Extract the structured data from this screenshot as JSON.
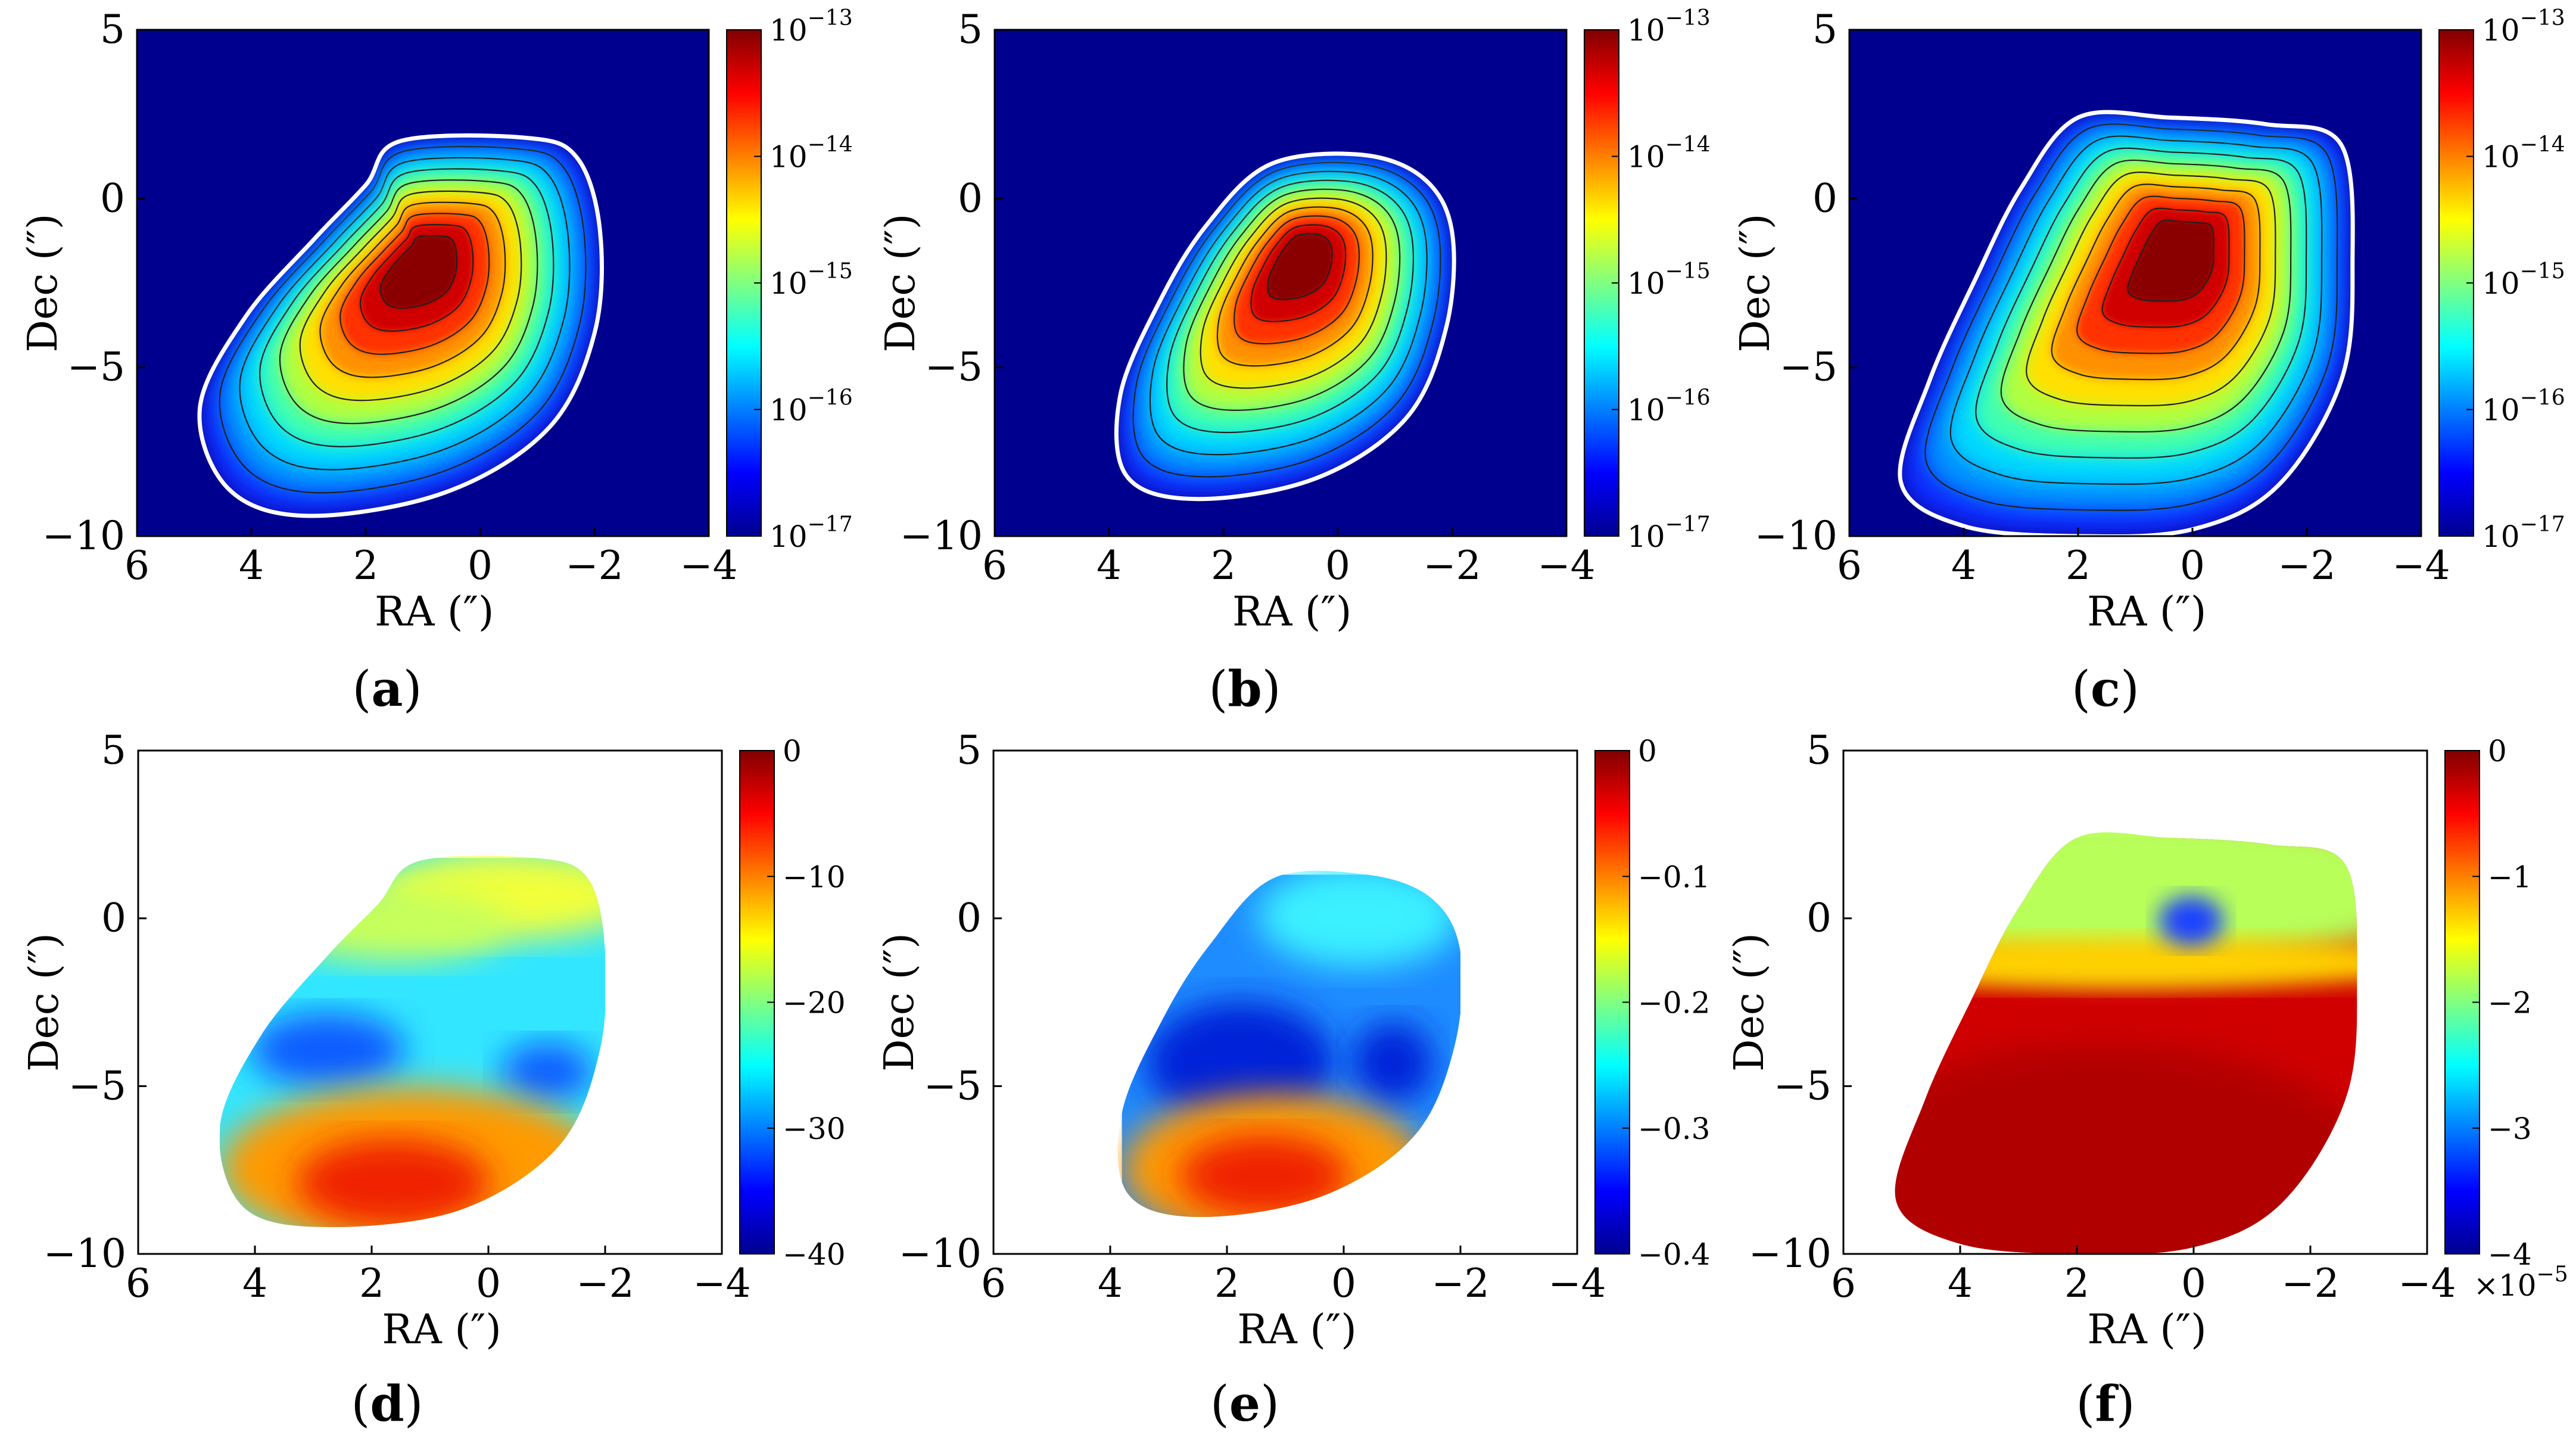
{
  "chart_data": [
    {
      "panel": "(a)",
      "type": "heatmap",
      "variant": "intensity",
      "xlabel": "RA (″)",
      "ylabel": "Dec (″)",
      "xlim": [
        6,
        -4
      ],
      "ylim": [
        -10,
        5
      ],
      "xticks": [
        "6",
        "4",
        "2",
        "0",
        "−2",
        "−4"
      ],
      "yticks": [
        "5",
        "0",
        "−5",
        "−10"
      ],
      "colorbar": {
        "scale": "log",
        "range": [
          1e-17,
          1e-13
        ],
        "ticks": [
          "10",
          "10",
          "10",
          "10",
          "10"
        ],
        "exponents": [
          "−13",
          "−14",
          "−15",
          "−16",
          "−17"
        ]
      },
      "boundary": [
        [
          1.4,
          1.7
        ],
        [
          -0.8,
          1.8
        ],
        [
          -1.7,
          1.2
        ],
        [
          -2.1,
          -1.0
        ],
        [
          -2.0,
          -4.0
        ],
        [
          -1.2,
          -6.8
        ],
        [
          0.6,
          -8.7
        ],
        [
          3.0,
          -9.4
        ],
        [
          4.4,
          -8.6
        ],
        [
          4.9,
          -6.2
        ],
        [
          4.1,
          -3.5
        ],
        [
          2.9,
          -1.2
        ],
        [
          2.0,
          0.4
        ]
      ],
      "peak": [
        1.0,
        -1.8
      ]
    },
    {
      "panel": "(b)",
      "type": "heatmap",
      "variant": "intensity",
      "xlabel": "RA (″)",
      "ylabel": "Dec (″)",
      "xlim": [
        6,
        -4
      ],
      "ylim": [
        -10,
        5
      ],
      "xticks": [
        "6",
        "4",
        "2",
        "0",
        "−2",
        "−4"
      ],
      "yticks": [
        "5",
        "0",
        "−5",
        "−10"
      ],
      "colorbar": {
        "scale": "log",
        "range": [
          1e-17,
          1e-13
        ],
        "ticks": [
          "10",
          "10",
          "10",
          "10",
          "10"
        ],
        "exponents": [
          "−13",
          "−14",
          "−15",
          "−16",
          "−17"
        ]
      },
      "boundary": [
        [
          1.2,
          1.0
        ],
        [
          -0.4,
          1.3
        ],
        [
          -1.5,
          0.6
        ],
        [
          -2.0,
          -1.0
        ],
        [
          -1.9,
          -3.8
        ],
        [
          -1.2,
          -6.5
        ],
        [
          0.4,
          -8.3
        ],
        [
          2.5,
          -8.9
        ],
        [
          3.7,
          -8.2
        ],
        [
          3.8,
          -5.8
        ],
        [
          3.1,
          -3.0
        ],
        [
          2.3,
          -0.8
        ]
      ],
      "peak": [
        0.6,
        -1.6
      ]
    },
    {
      "panel": "(c)",
      "type": "heatmap",
      "variant": "intensity",
      "xlabel": "RA (″)",
      "ylabel": "Dec (″)",
      "xlim": [
        6,
        -4
      ],
      "ylim": [
        -10,
        5
      ],
      "xticks": [
        "6",
        "4",
        "2",
        "0",
        "−2",
        "−4"
      ],
      "yticks": [
        "5",
        "0",
        "−5",
        "−10"
      ],
      "colorbar": {
        "scale": "log",
        "range": [
          1e-17,
          1e-13
        ],
        "ticks": [
          "10",
          "10",
          "10",
          "10",
          "10"
        ],
        "exponents": [
          "−13",
          "−14",
          "−15",
          "−16",
          "−17"
        ]
      },
      "boundary": [
        [
          2.0,
          2.4
        ],
        [
          0.4,
          2.4
        ],
        [
          -1.3,
          2.2
        ],
        [
          -2.6,
          1.6
        ],
        [
          -2.8,
          -2.0
        ],
        [
          -2.6,
          -5.4
        ],
        [
          -1.5,
          -8.5
        ],
        [
          0.0,
          -9.8
        ],
        [
          2.0,
          -10.0
        ],
        [
          4.0,
          -9.7
        ],
        [
          5.1,
          -8.4
        ],
        [
          4.6,
          -5.4
        ],
        [
          3.8,
          -2.4
        ],
        [
          3.0,
          0.3
        ]
      ],
      "peak": [
        0.2,
        -1.4
      ]
    },
    {
      "panel": "(d)",
      "type": "heatmap",
      "variant": "residual",
      "xlabel": "RA (″)",
      "ylabel": "Dec (″)",
      "xlim": [
        6,
        -4
      ],
      "ylim": [
        -10,
        5
      ],
      "xticks": [
        "6",
        "4",
        "2",
        "0",
        "−2",
        "−4"
      ],
      "yticks": [
        "5",
        "0",
        "−5",
        "−10"
      ],
      "colorbar": {
        "scale": "linear",
        "range": [
          -40,
          0
        ],
        "ticks": [
          "0",
          "−10",
          "−20",
          "−30",
          "−40"
        ]
      },
      "boundary": [
        [
          1.2,
          1.7
        ],
        [
          -0.8,
          1.8
        ],
        [
          -1.7,
          1.2
        ],
        [
          -2.0,
          -1.0
        ],
        [
          -1.9,
          -4.0
        ],
        [
          -1.2,
          -6.8
        ],
        [
          0.5,
          -8.7
        ],
        [
          2.8,
          -9.2
        ],
        [
          4.2,
          -8.6
        ],
        [
          4.6,
          -6.2
        ],
        [
          3.9,
          -3.5
        ],
        [
          2.8,
          -1.2
        ],
        [
          1.9,
          0.4
        ]
      ]
    },
    {
      "panel": "(e)",
      "type": "heatmap",
      "variant": "residual",
      "xlabel": "RA (″)",
      "ylabel": "Dec (″)",
      "xlim": [
        6,
        -4
      ],
      "ylim": [
        -10,
        5
      ],
      "xticks": [
        "6",
        "4",
        "2",
        "0",
        "−2",
        "−4"
      ],
      "yticks": [
        "5",
        "0",
        "−5",
        "−10"
      ],
      "colorbar": {
        "scale": "linear",
        "range": [
          -0.4,
          0
        ],
        "ticks": [
          "0",
          "−0.1",
          "−0.2",
          "−0.3",
          "−0.4"
        ]
      },
      "boundary": [
        [
          1.2,
          1.2
        ],
        [
          -0.4,
          1.3
        ],
        [
          -1.5,
          0.6
        ],
        [
          -2.0,
          -1.0
        ],
        [
          -1.9,
          -3.8
        ],
        [
          -1.2,
          -6.5
        ],
        [
          0.4,
          -8.3
        ],
        [
          2.5,
          -8.9
        ],
        [
          3.7,
          -8.2
        ],
        [
          3.8,
          -5.8
        ],
        [
          3.1,
          -3.0
        ],
        [
          2.3,
          -0.8
        ]
      ]
    },
    {
      "panel": "(f)",
      "type": "heatmap",
      "variant": "residual",
      "xlabel": "RA (″)",
      "ylabel": "Dec (″)",
      "xlim": [
        6,
        -4
      ],
      "ylim": [
        -10,
        5
      ],
      "xticks": [
        "6",
        "4",
        "2",
        "0",
        "−2",
        "−4"
      ],
      "yticks": [
        "5",
        "0",
        "−5",
        "−10"
      ],
      "colorbar": {
        "scale": "linear",
        "range": [
          -4,
          0
        ],
        "ticks": [
          "0",
          "−1",
          "−2",
          "−3",
          "−4"
        ],
        "multiplier": "×10",
        "multiplier_exp": "−5"
      },
      "boundary": [
        [
          2.0,
          2.4
        ],
        [
          0.4,
          2.4
        ],
        [
          -1.3,
          2.2
        ],
        [
          -2.6,
          1.6
        ],
        [
          -2.8,
          -2.0
        ],
        [
          -2.6,
          -5.4
        ],
        [
          -1.5,
          -8.5
        ],
        [
          0.0,
          -9.8
        ],
        [
          2.0,
          -10.0
        ],
        [
          4.0,
          -9.7
        ],
        [
          5.1,
          -8.4
        ],
        [
          4.6,
          -5.4
        ],
        [
          3.8,
          -2.4
        ],
        [
          3.0,
          0.3
        ]
      ]
    }
  ],
  "panel_labels": [
    "(a)",
    "(b)",
    "(c)",
    "(d)",
    "(e)",
    "(f)"
  ]
}
